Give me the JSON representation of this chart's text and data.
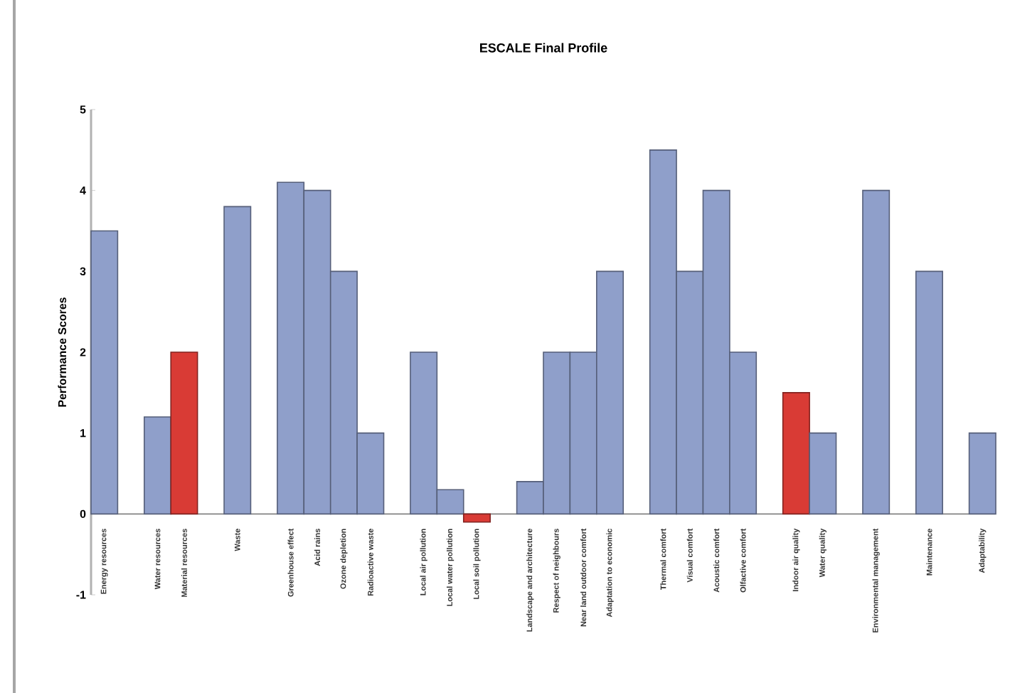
{
  "chart_data": {
    "type": "bar",
    "title": "ESCALE Final Profile",
    "ylabel": "Performance Scores",
    "categories": [
      "Energy resources",
      null,
      "Water resources",
      "Material resources",
      null,
      "Waste",
      null,
      "Greenhouse effect",
      "Acid rains",
      "Ozone depletion",
      "Radioactive waste",
      null,
      "Local air pollution",
      "Local water pollution",
      "Local soil pollution",
      null,
      "Landscape and architecture",
      "Respect of neighbours",
      "Near land outdoor comfort",
      "Adaptation to economic",
      null,
      "Thermal comfort",
      "Visual comfort",
      "Acoustic comfort",
      "Olfactive comfort",
      null,
      "Indoor air quality",
      "Water quality",
      null,
      "Environmental management",
      null,
      "Maintenance",
      null,
      "Adaptability"
    ],
    "values": [
      3.5,
      null,
      1.2,
      2,
      null,
      3.8,
      null,
      4.1,
      4,
      3,
      1,
      null,
      2,
      0.3,
      -0.1,
      null,
      0.4,
      2,
      2,
      3,
      null,
      4.5,
      3,
      4,
      2,
      null,
      1.5,
      1,
      null,
      4,
      null,
      3,
      null,
      1
    ],
    "colors": [
      "#8f9fca",
      null,
      "#8f9fca",
      "#d93b35",
      null,
      "#8f9fca",
      null,
      "#8f9fca",
      "#8f9fca",
      "#8f9fca",
      "#8f9fca",
      null,
      "#8f9fca",
      "#8f9fca",
      "#d93b35",
      null,
      "#8f9fca",
      "#8f9fca",
      "#8f9fca",
      "#8f9fca",
      null,
      "#8f9fca",
      "#8f9fca",
      "#8f9fca",
      "#8f9fca",
      null,
      "#d93b35",
      "#8f9fca",
      null,
      "#8f9fca",
      null,
      "#8f9fca",
      null,
      "#8f9fca"
    ],
    "ylim": [
      -1,
      5
    ],
    "yticks": [
      -1,
      0,
      1,
      2,
      3,
      4,
      5
    ]
  }
}
